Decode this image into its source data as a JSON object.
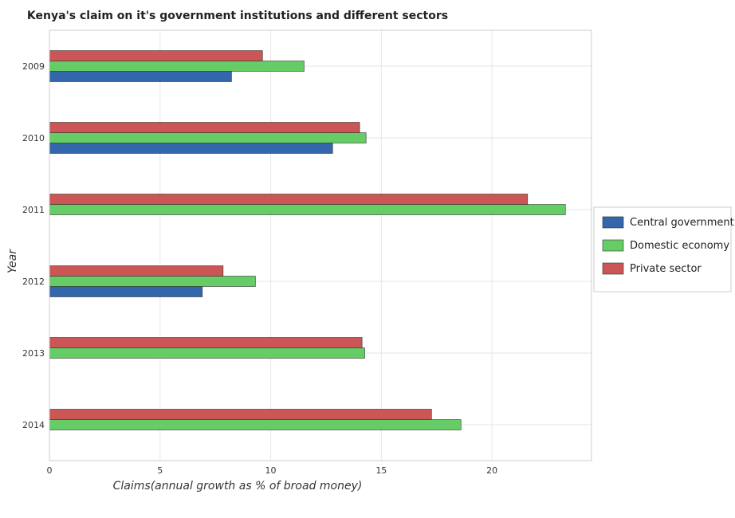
{
  "chart_data": {
    "type": "bar",
    "orientation": "horizontal",
    "title": "Kenya's claim on it's government institutions and different sectors",
    "xlabel": "Claims(annual growth as % of broad money)",
    "ylabel": "Year",
    "categories": [
      "2009",
      "2010",
      "2011",
      "2012",
      "2013",
      "2014"
    ],
    "xlim": [
      0,
      24.5
    ],
    "xticks": [
      0,
      5,
      10,
      15,
      20
    ],
    "grid": true,
    "legend_position": "right",
    "series": [
      {
        "name": "Central government",
        "color": "#3366aa",
        "values": [
          8.23,
          12.8,
          0,
          6.91,
          0,
          0
        ]
      },
      {
        "name": "Domestic economy",
        "color": "#66cc66",
        "values": [
          11.51,
          14.31,
          23.32,
          9.31,
          14.25,
          18.6
        ]
      },
      {
        "name": "Private sector",
        "color": "#cc5555",
        "values": [
          9.63,
          14.02,
          21.61,
          7.85,
          14.13,
          17.27
        ]
      }
    ]
  }
}
